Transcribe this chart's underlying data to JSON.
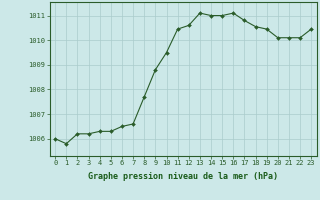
{
  "x": [
    0,
    1,
    2,
    3,
    4,
    5,
    6,
    7,
    8,
    9,
    10,
    11,
    12,
    13,
    14,
    15,
    16,
    17,
    18,
    19,
    20,
    21,
    22,
    23
  ],
  "y": [
    1006.0,
    1005.8,
    1006.2,
    1006.2,
    1006.3,
    1006.3,
    1006.5,
    1006.6,
    1007.7,
    1008.8,
    1009.5,
    1010.45,
    1010.6,
    1011.1,
    1011.0,
    1011.0,
    1011.1,
    1010.8,
    1010.55,
    1010.45,
    1010.1,
    1010.1,
    1010.1,
    1010.45
  ],
  "line_color": "#2a5c2a",
  "marker_color": "#2a5c2a",
  "bg_color": "#cce8e8",
  "grid_color": "#aacccc",
  "xlabel": "Graphe pression niveau de la mer (hPa)",
  "xlabel_color": "#1a5c1a",
  "ylabel_ticks": [
    1006,
    1007,
    1008,
    1009,
    1010,
    1011
  ],
  "xtick_labels": [
    "0",
    "1",
    "2",
    "3",
    "4",
    "5",
    "6",
    "7",
    "8",
    "9",
    "10",
    "11",
    "12",
    "13",
    "14",
    "15",
    "16",
    "17",
    "18",
    "19",
    "20",
    "21",
    "22",
    "23"
  ],
  "ylim": [
    1005.3,
    1011.55
  ],
  "xlim": [
    -0.5,
    23.5
  ],
  "axis_color": "#2a5c2a",
  "tick_color": "#2a5c2a",
  "tick_fontsize": 5.0,
  "xlabel_fontsize": 6.0,
  "linewidth": 0.8,
  "markersize": 2.0
}
